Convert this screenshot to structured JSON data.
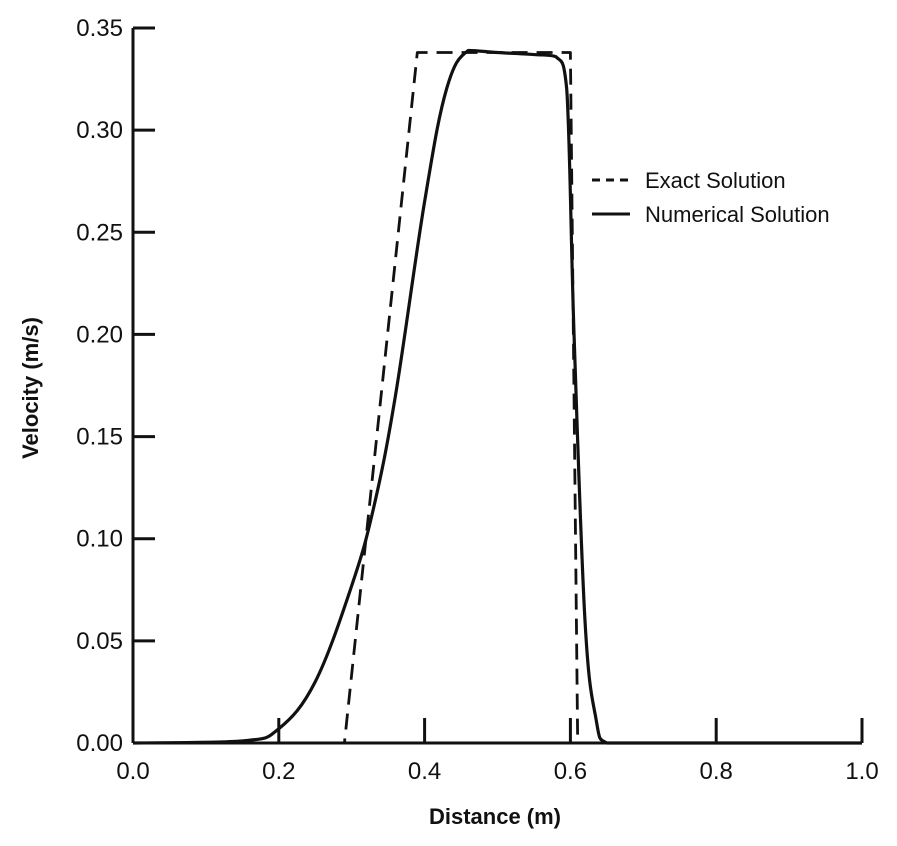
{
  "chart_data": {
    "type": "line",
    "title": "",
    "xlabel": "Distance (m)",
    "ylabel": "Velocity (m/s)",
    "xlim": [
      0.0,
      1.0
    ],
    "ylim": [
      0.0,
      0.35
    ],
    "x_ticks": [
      0.0,
      0.2,
      0.4,
      0.6,
      0.8,
      1.0
    ],
    "x_tick_labels": [
      "0.0",
      "0.2",
      "0.4",
      "0.6",
      "0.8",
      "1.0"
    ],
    "y_ticks": [
      0.0,
      0.05,
      0.1,
      0.15,
      0.2,
      0.25,
      0.3,
      0.35
    ],
    "y_tick_labels": [
      "0.00",
      "0.05",
      "0.10",
      "0.15",
      "0.20",
      "0.25",
      "0.30",
      "0.35"
    ],
    "grid": false,
    "legend_position": "top-right",
    "series": [
      {
        "name": "Exact Solution",
        "style": "dashed",
        "x": [
          0.0,
          0.29,
          0.39,
          0.6,
          0.6,
          0.61,
          1.0
        ],
        "y": [
          0.0,
          0.0,
          0.338,
          0.338,
          0.338,
          0.0,
          0.0
        ]
      },
      {
        "name": "Numerical Solution",
        "style": "solid",
        "x": [
          0.0,
          0.15,
          0.2,
          0.25,
          0.3,
          0.33,
          0.36,
          0.4,
          0.43,
          0.46,
          0.5,
          0.55,
          0.58,
          0.595,
          0.605,
          0.62,
          0.635,
          0.65,
          0.7,
          1.0
        ],
        "y": [
          0.0,
          0.001,
          0.007,
          0.03,
          0.077,
          0.115,
          0.17,
          0.265,
          0.32,
          0.339,
          0.338,
          0.337,
          0.336,
          0.32,
          0.2,
          0.06,
          0.012,
          0.0,
          0.0,
          0.0
        ]
      }
    ],
    "colors": {
      "axis": "#111111",
      "line": "#111111",
      "background": "#ffffff"
    }
  }
}
